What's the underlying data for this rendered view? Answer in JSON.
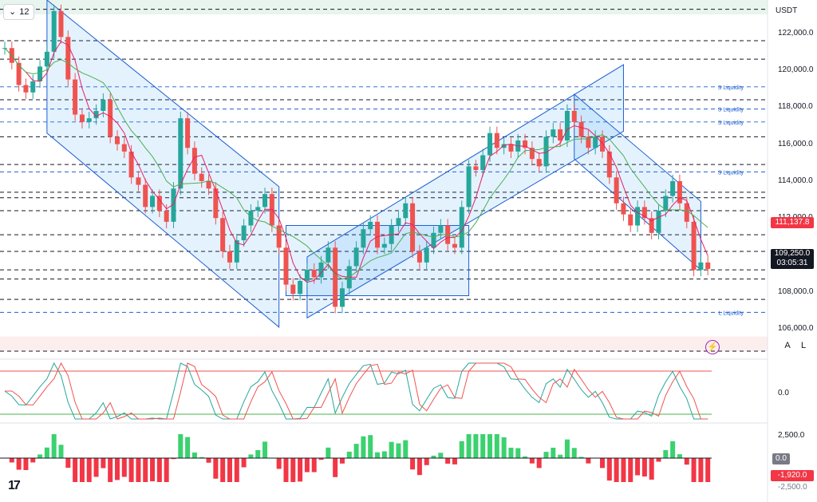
{
  "toolbar": {
    "interval": "12",
    "currency": "USDT",
    "autoscale": "A",
    "log": "L"
  },
  "price_axis": {
    "labels": [
      "122,000.0",
      "120,000.0",
      "118,000.0",
      "116,000.0",
      "114,000.0",
      "112,000.0",
      "110,000.0",
      "108,000.0",
      "106,000.0"
    ],
    "current_price": "109,250.0",
    "countdown": "03:05:31",
    "ma_price": "111,137.8"
  },
  "oscillator_axis": {
    "label": "0.0"
  },
  "histogram_axis": {
    "top": "2,500.0",
    "zero": "0.0",
    "value": "-1,920.0",
    "bottom": "-2,500.0"
  },
  "liquidity_labels": [
    "S Liquidity",
    "S Liquidity",
    "S Liquidity",
    "S Liquidity",
    "L Liquidity"
  ],
  "colors": {
    "up": "#26a69a",
    "down": "#ef5350",
    "channel": "#1e5fd1",
    "ma_fast": "#e91e63",
    "ma_slow": "#4caf50",
    "label_red": "#f23645",
    "label_dark": "#131722",
    "hist_pos": "#3bd16f",
    "hist_neg": "#f23645"
  },
  "chart_data": {
    "type": "candlestick",
    "symbol_quote": "USDT",
    "ylim": [
      104800,
      123800
    ],
    "price_path": [
      121200,
      120400,
      119200,
      118800,
      119400,
      120200,
      121000,
      123200,
      121800,
      119500,
      117600,
      117200,
      117400,
      117800,
      118400,
      116400,
      116000,
      115600,
      114200,
      113800,
      112600,
      113200,
      112400,
      111800,
      113600,
      117400,
      115800,
      114400,
      114000,
      113600,
      112000,
      110200,
      109600,
      110800,
      111600,
      112400,
      112600,
      113300,
      111600,
      110400,
      108400,
      107900,
      108600,
      109200,
      108800,
      109600,
      110400,
      107200,
      108200,
      109400,
      110400,
      111400,
      111800,
      110400,
      110600,
      111600,
      112000,
      112800,
      110200,
      109600,
      110400,
      111200,
      111600,
      110600,
      110400,
      112600,
      114800,
      114600,
      115400,
      116600,
      115800,
      116000,
      115600,
      116200,
      115800,
      115200,
      114800,
      116400,
      116800,
      116200,
      117800,
      117200,
      116400,
      115800,
      116400,
      115600,
      114200,
      112800,
      112200,
      111600,
      112600,
      112000,
      111200,
      112400,
      113200,
      114000,
      112800,
      111800,
      109200,
      109600,
      109250
    ],
    "levels_dashed_black": [
      123300,
      121600,
      120600,
      118400,
      116400,
      114900,
      113400,
      113100,
      112400,
      111100,
      110200,
      109200,
      108700,
      107600,
      104800
    ],
    "levels_blue_liquidity": [
      {
        "price": 119100,
        "label": "S Liquidity"
      },
      {
        "price": 117900,
        "label": "S Liquidity"
      },
      {
        "price": 117200,
        "label": "S Liquidity"
      },
      {
        "price": 114500,
        "label": "S Liquidity"
      },
      {
        "price": 106900,
        "label": "L Liquidity"
      }
    ],
    "oscillator": {
      "ylim": [
        -1,
        1
      ],
      "zero": 0
    },
    "histogram": {
      "ylim": [
        -2500,
        2500
      ],
      "last": -1920
    }
  }
}
